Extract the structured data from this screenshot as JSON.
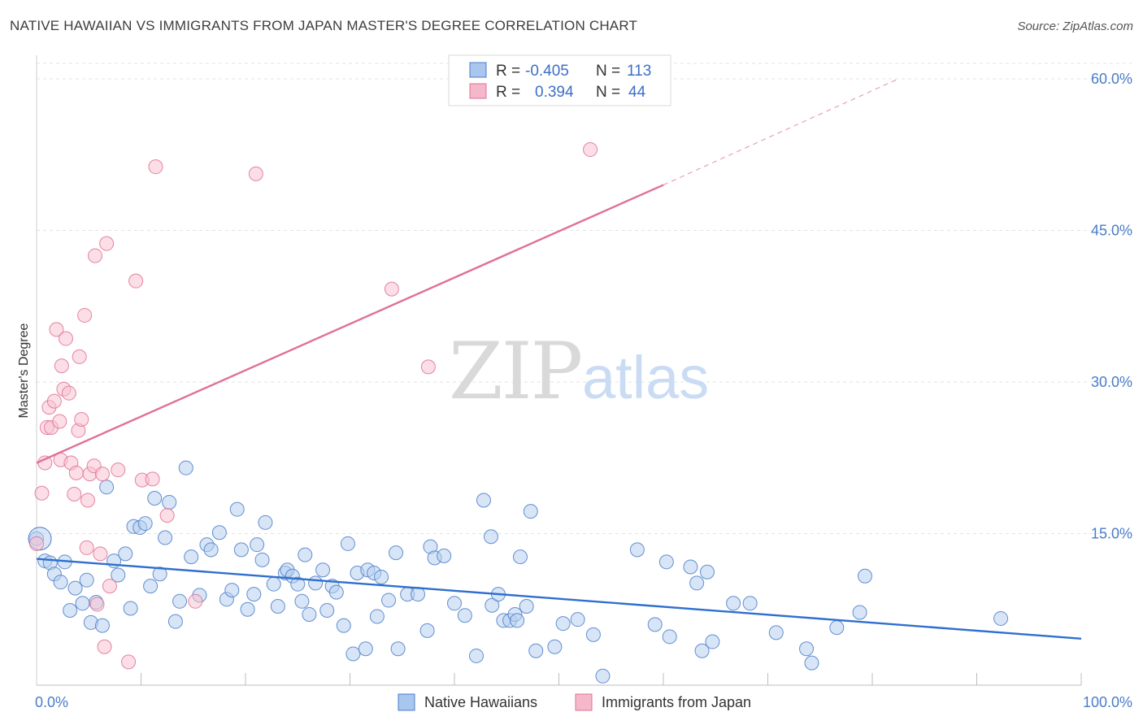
{
  "title": "NATIVE HAWAIIAN VS IMMIGRANTS FROM JAPAN MASTER'S DEGREE CORRELATION CHART",
  "source": "Source: ZipAtlas.com",
  "watermark": {
    "part1": "ZIP",
    "part2": "atlas"
  },
  "legend_box": {
    "rows": [
      {
        "r_label": "R =",
        "r_value": "-0.405",
        "n_label": "N =",
        "n_value": "113",
        "color": "#a9c6ee"
      },
      {
        "r_label": "R =",
        "r_value": "0.394",
        "n_label": "N =",
        "n_value": "44",
        "color": "#f5b8cb"
      }
    ]
  },
  "chart_data": {
    "type": "scatter",
    "xlabel": "",
    "ylabel": "Master's Degree",
    "xlim": [
      0,
      100
    ],
    "ylim": [
      0,
      60
    ],
    "x_tick_labels": [
      "0.0%",
      "100.0%"
    ],
    "y_ticks": [
      15,
      30,
      45,
      60
    ],
    "y_tick_labels": [
      "15.0%",
      "30.0%",
      "45.0%",
      "60.0%"
    ],
    "grid": true,
    "legend_position": "bottom",
    "series": [
      {
        "name": "Native Hawaiians",
        "color": "#4a7cc9",
        "fill": "#b7cfef",
        "trend": {
          "x": [
            0,
            100
          ],
          "y": [
            12.5,
            4.6
          ]
        },
        "points": [
          [
            0.0,
            14.5
          ],
          [
            0.8,
            12.3
          ],
          [
            1.3,
            12.1
          ],
          [
            1.7,
            11.0
          ],
          [
            2.3,
            10.2
          ],
          [
            2.7,
            12.2
          ],
          [
            3.2,
            7.4
          ],
          [
            3.7,
            9.6
          ],
          [
            4.4,
            8.1
          ],
          [
            4.8,
            10.4
          ],
          [
            5.2,
            6.2
          ],
          [
            5.7,
            8.2
          ],
          [
            6.3,
            5.9
          ],
          [
            6.7,
            19.6
          ],
          [
            7.4,
            12.3
          ],
          [
            7.8,
            10.9
          ],
          [
            8.5,
            13.0
          ],
          [
            9.0,
            7.6
          ],
          [
            9.3,
            15.7
          ],
          [
            9.9,
            15.6
          ],
          [
            10.4,
            16.0
          ],
          [
            10.9,
            9.8
          ],
          [
            11.3,
            18.5
          ],
          [
            11.8,
            11.0
          ],
          [
            12.3,
            14.6
          ],
          [
            12.7,
            18.1
          ],
          [
            13.3,
            6.3
          ],
          [
            13.7,
            8.3
          ],
          [
            14.3,
            21.5
          ],
          [
            14.8,
            12.7
          ],
          [
            15.6,
            8.9
          ],
          [
            16.3,
            13.9
          ],
          [
            16.7,
            13.4
          ],
          [
            17.5,
            15.1
          ],
          [
            18.2,
            8.5
          ],
          [
            18.7,
            9.4
          ],
          [
            19.2,
            17.4
          ],
          [
            19.6,
            13.4
          ],
          [
            20.2,
            7.5
          ],
          [
            20.8,
            9.0
          ],
          [
            21.1,
            13.9
          ],
          [
            21.6,
            12.4
          ],
          [
            21.9,
            16.1
          ],
          [
            22.7,
            10.0
          ],
          [
            23.1,
            7.8
          ],
          [
            23.8,
            11.1
          ],
          [
            24.0,
            11.4
          ],
          [
            24.5,
            10.8
          ],
          [
            25.4,
            8.3
          ],
          [
            25.7,
            12.9
          ],
          [
            26.1,
            7.0
          ],
          [
            26.7,
            10.1
          ],
          [
            27.4,
            11.4
          ],
          [
            27.8,
            7.4
          ],
          [
            28.3,
            9.8
          ],
          [
            28.7,
            9.2
          ],
          [
            29.4,
            5.9
          ],
          [
            29.8,
            14.0
          ],
          [
            30.3,
            3.1
          ],
          [
            30.7,
            11.1
          ],
          [
            31.5,
            3.6
          ],
          [
            31.7,
            11.4
          ],
          [
            32.3,
            11.1
          ],
          [
            32.6,
            6.8
          ],
          [
            33.7,
            8.4
          ],
          [
            34.4,
            13.1
          ],
          [
            34.6,
            3.6
          ],
          [
            35.5,
            9.0
          ],
          [
            36.5,
            9.0
          ],
          [
            37.4,
            5.4
          ],
          [
            37.7,
            13.7
          ],
          [
            38.1,
            12.6
          ],
          [
            39.0,
            12.8
          ],
          [
            40.0,
            8.1
          ],
          [
            42.1,
            2.9
          ],
          [
            42.8,
            18.3
          ],
          [
            43.5,
            14.7
          ],
          [
            43.6,
            7.9
          ],
          [
            44.2,
            9.0
          ],
          [
            44.7,
            6.4
          ],
          [
            45.3,
            6.4
          ],
          [
            45.8,
            7.0
          ],
          [
            46.3,
            12.7
          ],
          [
            46.9,
            7.8
          ],
          [
            47.3,
            17.2
          ],
          [
            47.8,
            3.4
          ],
          [
            49.6,
            3.8
          ],
          [
            50.4,
            6.1
          ],
          [
            51.8,
            6.5
          ],
          [
            53.3,
            5.0
          ],
          [
            54.2,
            0.9
          ],
          [
            57.5,
            13.4
          ],
          [
            59.2,
            6.0
          ],
          [
            60.3,
            12.2
          ],
          [
            60.6,
            4.8
          ],
          [
            62.6,
            11.7
          ],
          [
            63.2,
            10.1
          ],
          [
            63.7,
            3.4
          ],
          [
            64.2,
            11.2
          ],
          [
            64.7,
            4.3
          ],
          [
            66.7,
            8.1
          ],
          [
            68.3,
            8.1
          ],
          [
            70.8,
            5.2
          ],
          [
            73.7,
            3.6
          ],
          [
            74.2,
            2.2
          ],
          [
            76.6,
            5.7
          ],
          [
            78.8,
            7.2
          ],
          [
            79.3,
            10.8
          ],
          [
            92.3,
            6.6
          ],
          [
            25.0,
            10.0
          ],
          [
            33.0,
            10.7
          ],
          [
            46.0,
            6.4
          ],
          [
            41.0,
            6.9
          ]
        ]
      },
      {
        "name": "Immigrants from Japan",
        "color": "#e07095",
        "fill": "#f7c3d2",
        "trend": {
          "x": [
            0,
            60
          ],
          "y": [
            22.0,
            49.5
          ]
        },
        "trend_dashed": {
          "x": [
            60,
            82.5
          ],
          "y": [
            49.5,
            60.0
          ]
        },
        "points": [
          [
            0.0,
            14.0
          ],
          [
            0.5,
            19.0
          ],
          [
            0.8,
            22.0
          ],
          [
            1.0,
            25.5
          ],
          [
            1.2,
            27.5
          ],
          [
            1.4,
            25.5
          ],
          [
            1.7,
            28.1
          ],
          [
            1.9,
            35.2
          ],
          [
            2.2,
            26.1
          ],
          [
            2.3,
            22.3
          ],
          [
            2.4,
            31.6
          ],
          [
            2.6,
            29.3
          ],
          [
            2.8,
            34.3
          ],
          [
            3.1,
            28.9
          ],
          [
            3.3,
            22.0
          ],
          [
            3.6,
            18.9
          ],
          [
            3.8,
            21.0
          ],
          [
            4.0,
            25.2
          ],
          [
            4.1,
            32.5
          ],
          [
            4.3,
            26.3
          ],
          [
            4.6,
            36.6
          ],
          [
            4.8,
            13.6
          ],
          [
            4.9,
            18.3
          ],
          [
            5.1,
            20.9
          ],
          [
            5.5,
            21.7
          ],
          [
            5.6,
            42.5
          ],
          [
            5.8,
            8.0
          ],
          [
            6.1,
            13.0
          ],
          [
            6.3,
            20.9
          ],
          [
            6.5,
            3.8
          ],
          [
            6.7,
            43.7
          ],
          [
            7.0,
            9.8
          ],
          [
            7.8,
            21.3
          ],
          [
            8.8,
            2.3
          ],
          [
            9.5,
            40.0
          ],
          [
            10.1,
            20.3
          ],
          [
            11.1,
            20.4
          ],
          [
            11.4,
            51.3
          ],
          [
            12.5,
            16.8
          ],
          [
            15.2,
            8.3
          ],
          [
            21.0,
            50.6
          ],
          [
            34.0,
            39.2
          ],
          [
            37.5,
            31.5
          ],
          [
            53.0,
            53.0
          ]
        ]
      }
    ]
  }
}
